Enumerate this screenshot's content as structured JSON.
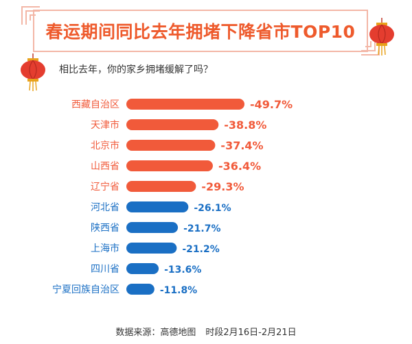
{
  "title": "春运期间同比去年拥堵下降省市TOP10",
  "subtitle": "相比去年，你的家乡拥堵缓解了吗？",
  "source": {
    "label": "数据来源：高德地图",
    "period": "时段2月16日-2月21日"
  },
  "colors": {
    "top_group": "#f15a3a",
    "bottom_group": "#1a6fc4",
    "title": "#ee5a2c",
    "frame": "#f3b6a6"
  },
  "chart_data": {
    "type": "bar",
    "orientation": "horizontal",
    "categories": [
      "西藏自治区",
      "天津市",
      "北京市",
      "山西省",
      "辽宁省",
      "河北省",
      "陕西省",
      "上海市",
      "四川省",
      "宁夏回族自治区"
    ],
    "values": [
      -49.7,
      -38.8,
      -37.4,
      -36.4,
      -29.3,
      -26.1,
      -21.7,
      -21.2,
      -13.6,
      -11.8
    ],
    "value_labels": [
      "-49.7%",
      "-38.8%",
      "-37.4%",
      "-36.4%",
      "-29.3%",
      "-26.1%",
      "-21.7%",
      "-21.2%",
      "-13.6%",
      "-11.8%"
    ],
    "highlight_count": 5,
    "grid": false,
    "legend": "none"
  }
}
